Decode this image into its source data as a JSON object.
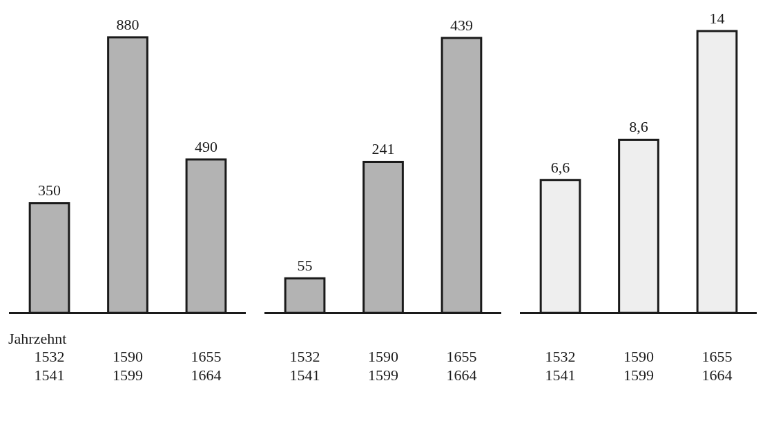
{
  "chart_data": [
    {
      "type": "bar",
      "xlabel": "Jahrzehnt",
      "categories": [
        "1532\n1541",
        "1590\n1599",
        "1655\n1664"
      ],
      "values": [
        350,
        880,
        490
      ],
      "color": "#b3b3b3",
      "value_labels": [
        "350",
        "880",
        "490"
      ],
      "grid": false,
      "legend": false,
      "tick_labels": "x"
    },
    {
      "type": "bar",
      "categories": [
        "1532\n1541",
        "1590\n1599",
        "1655\n1664"
      ],
      "values": [
        55,
        241,
        439
      ],
      "color": "#b3b3b3",
      "value_labels": [
        "55",
        "241",
        "439"
      ],
      "grid": false,
      "legend": false,
      "tick_labels": "x"
    },
    {
      "type": "bar",
      "categories": [
        "1532\n1541",
        "1590\n1599",
        "1655\n1664"
      ],
      "values": [
        6.6,
        8.6,
        14
      ],
      "color": "#eeeeee",
      "value_labels": [
        "6,6",
        "8,6",
        "14"
      ],
      "grid": false,
      "legend": false,
      "tick_labels": "x"
    }
  ]
}
